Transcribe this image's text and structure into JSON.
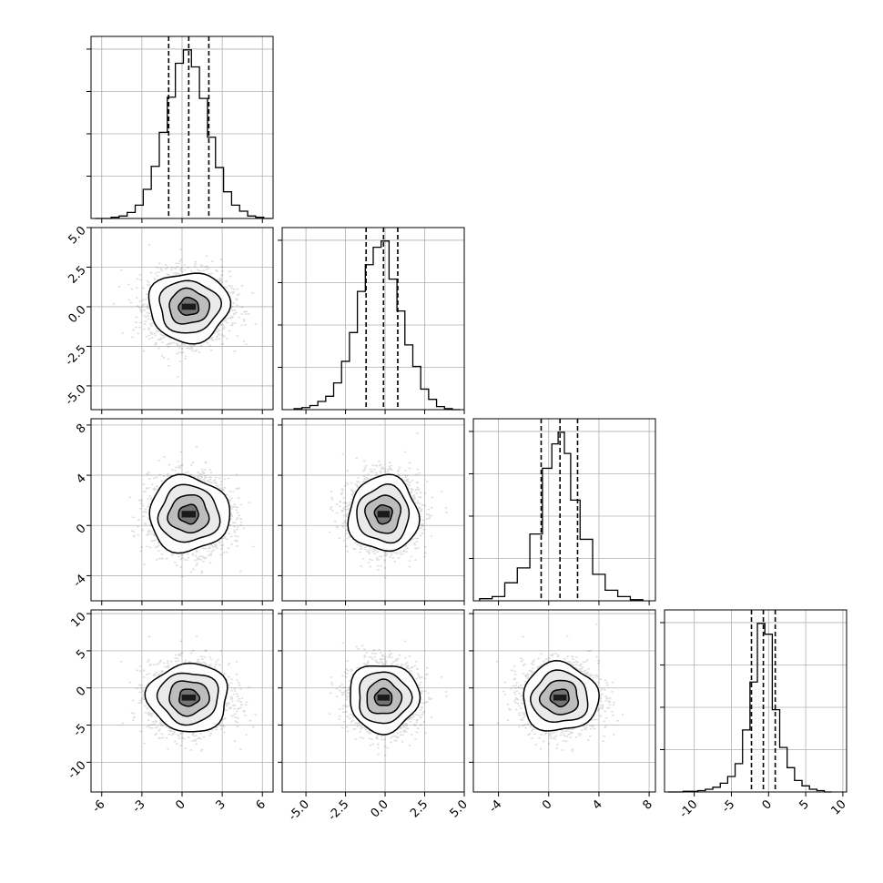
{
  "chart_data": {
    "type": "corner",
    "dims": 4,
    "grid": true,
    "colors": {
      "line": "#000000",
      "grid": "#b0b0b0",
      "scatter": "#000000",
      "background": "#ffffff"
    },
    "ranges": [
      [
        -6.8,
        6.8
      ],
      [
        -6.5,
        5.0
      ],
      [
        -6.0,
        8.5
      ],
      [
        -14.0,
        10.5
      ]
    ],
    "ticks": [
      [
        "-6",
        "-3",
        "0",
        "3",
        "6"
      ],
      [
        "-5.0",
        "-2.5",
        "0.0",
        "2.5",
        "5.0"
      ],
      [
        "-4",
        "0",
        "4",
        "8"
      ],
      [
        "-10",
        "-5",
        "0",
        "5",
        "10"
      ]
    ],
    "quantiles": [
      [
        -1.0,
        0.5,
        2.0
      ],
      [
        -1.2,
        -0.1,
        0.8
      ],
      [
        -0.6,
        0.9,
        2.3
      ],
      [
        -2.3,
        -0.7,
        0.9
      ]
    ],
    "histograms": [
      {
        "centers": [
          -6.2,
          -5.6,
          -5.0,
          -4.4,
          -3.8,
          -3.2,
          -2.6,
          -2.0,
          -1.4,
          -0.8,
          -0.2,
          0.4,
          1.0,
          1.6,
          2.2,
          2.8,
          3.4,
          4.0,
          4.6,
          5.2,
          5.8,
          6.4
        ],
        "values": [
          0,
          0,
          1,
          2,
          5,
          11,
          24,
          43,
          71,
          100,
          128,
          139,
          125,
          99,
          67,
          42,
          22,
          11,
          6,
          2,
          1,
          0
        ]
      },
      {
        "centers": [
          -5.5,
          -5.0,
          -4.5,
          -4.0,
          -3.5,
          -3.0,
          -2.5,
          -2.0,
          -1.5,
          -1.0,
          -0.5,
          0.0,
          0.5,
          1.0,
          1.5,
          2.0,
          2.5,
          3.0,
          3.5,
          4.0,
          4.5
        ],
        "values": [
          1,
          2,
          4,
          8,
          13,
          26,
          47,
          75,
          115,
          141,
          158,
          164,
          127,
          96,
          63,
          42,
          20,
          10,
          3,
          1,
          0
        ]
      },
      {
        "centers": [
          -5.0,
          -4.0,
          -3.0,
          -2.0,
          -1.0,
          0.0,
          0.5,
          1.0,
          1.5,
          2.0,
          3.0,
          4.0,
          5.0,
          6.0,
          7.0
        ],
        "values": [
          2,
          4,
          17,
          31,
          63,
          125,
          148,
          159,
          139,
          95,
          58,
          25,
          10,
          4,
          1
        ]
      },
      {
        "centers": [
          -13.0,
          -12.0,
          -11.0,
          -10.0,
          -9.0,
          -8.0,
          -7.0,
          -6.0,
          -5.0,
          -4.0,
          -3.0,
          -2.0,
          -1.0,
          0.0,
          1.0,
          2.0,
          3.0,
          4.0,
          5.0,
          6.0,
          7.0,
          8.0
        ],
        "values": [
          0,
          0,
          1,
          1,
          2,
          4,
          7,
          13,
          23,
          42,
          92,
          163,
          250,
          234,
          122,
          66,
          36,
          17,
          9,
          4,
          2,
          0
        ]
      }
    ],
    "joint": [
      {
        "row": 1,
        "col": 0,
        "mean": [
          0.5,
          0.0
        ],
        "sigma": [
          1.5,
          1.1
        ],
        "peak": [
          0.5,
          0.0
        ]
      },
      {
        "row": 2,
        "col": 0,
        "mean": [
          0.5,
          0.9
        ],
        "sigma": [
          1.5,
          1.5
        ],
        "peak": [
          0.5,
          0.9
        ]
      },
      {
        "row": 2,
        "col": 1,
        "mean": [
          -0.1,
          0.9
        ],
        "sigma": [
          1.1,
          1.5
        ],
        "peak": [
          -0.1,
          0.9
        ]
      },
      {
        "row": 3,
        "col": 0,
        "mean": [
          0.5,
          -1.3
        ],
        "sigma": [
          1.5,
          2.3
        ],
        "peak": [
          0.5,
          -1.3
        ]
      },
      {
        "row": 3,
        "col": 1,
        "mean": [
          -0.1,
          -1.3
        ],
        "sigma": [
          1.1,
          2.3
        ],
        "peak": [
          -0.1,
          -1.3
        ]
      },
      {
        "row": 3,
        "col": 2,
        "mean": [
          0.9,
          -1.3
        ],
        "sigma": [
          1.5,
          2.3
        ],
        "peak": [
          0.9,
          -1.3
        ]
      }
    ]
  }
}
